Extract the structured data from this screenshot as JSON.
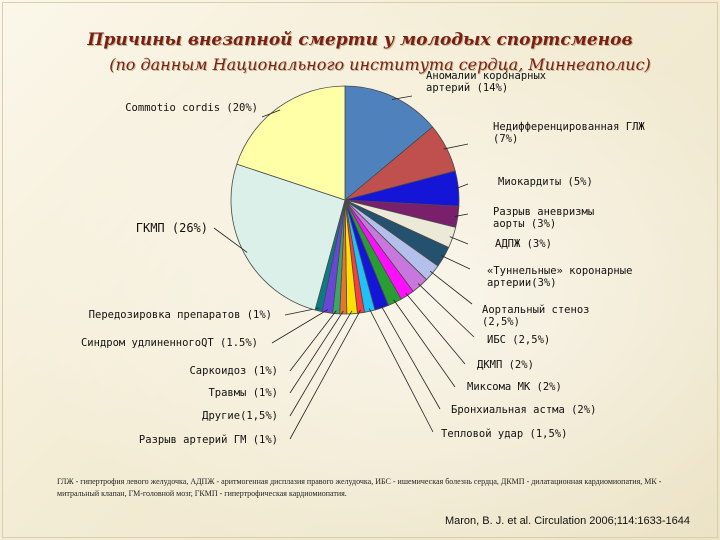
{
  "title": "Причины внезапной смерти у молодых спортсменов",
  "subtitle": "(по данным Национального института сердца, Миннеаполис)",
  "chart_data": {
    "type": "pie",
    "slices": [
      {
        "label": "Аномалии коронарных артерий (14%)",
        "value": 14,
        "color": "#4f81bd"
      },
      {
        "label": "Недифференцированная ГЛЖ (7%)",
        "value": 7,
        "color": "#c0504d"
      },
      {
        "label": "Миокардиты (5%)",
        "value": 5,
        "color": "#1515d8"
      },
      {
        "label": "Разрыв аневризмы аорты (3%)",
        "value": 3,
        "color": "#7a1f6b"
      },
      {
        "label": "АДПЖ (3%)",
        "value": 3,
        "color": "#ece9d8"
      },
      {
        "label": "«Туннельные» коронарные артерии(3%)",
        "value": 3,
        "color": "#24526e"
      },
      {
        "label": "Аортальный стеноз (2,5%)",
        "value": 2.5,
        "color": "#b4c0ec"
      },
      {
        "label": "ИБС (2,5%)",
        "value": 2.5,
        "color": "#c878dc"
      },
      {
        "label": "ДКМП (2%)",
        "value": 2,
        "color": "#ff0fff"
      },
      {
        "label": "Миксома МК (2%)",
        "value": 2,
        "color": "#2a9c34"
      },
      {
        "label": "Бронхиальная астма (2%)",
        "value": 2,
        "color": "#1515d8"
      },
      {
        "label": "Тепловой удар (1,5%)",
        "value": 1.5,
        "color": "#20c0f8"
      },
      {
        "label": "Разрыв артерий ГМ (1%)",
        "value": 1,
        "color": "#ff3c3c"
      },
      {
        "label": "Другие(1,5%)",
        "value": 1.5,
        "color": "#ffe000"
      },
      {
        "label": "Травмы (1%)",
        "value": 1,
        "color": "#e07830"
      },
      {
        "label": "Саркоидоз (1%)",
        "value": 1,
        "color": "#3aa66a"
      },
      {
        "label": "Синдром удлиненногоQT (1.5%)",
        "value": 1.5,
        "color": "#6a46d8"
      },
      {
        "label": "Передозировка препаратов (1%)",
        "value": 1,
        "color": "#0a7c84"
      },
      {
        "label": "ГКМП (26%)",
        "value": 26,
        "color": "#daf0e8"
      },
      {
        "label": "Commotio cordis (20%)",
        "value": 20,
        "color": "#ffffa8"
      }
    ]
  },
  "footnote": "ГЛЖ - гипертрофия левого желудочка, АДПЖ - аритмогенная дисплазия правого желудочка, ИБС - ишемическая болезнь сердца, ДКМП - дилатационная кардиомиопатия, МК - митральный клапан, ГМ-головной мозг, ГКМП - гипертрофическая кардиомиопатия.",
  "source": "Maron, B. J. et al. Circulation 2006;114:1633-1644"
}
